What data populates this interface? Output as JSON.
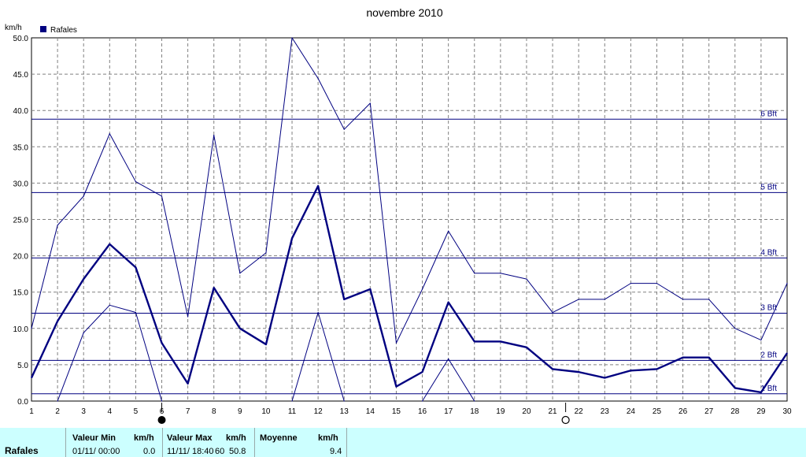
{
  "chart_data": {
    "type": "line",
    "title": "novembre 2010",
    "ylabel": "km/h",
    "ylim": [
      0,
      50
    ],
    "yticks": [
      "0.0",
      "5.0",
      "10.0",
      "15.0",
      "20.0",
      "25.0",
      "30.0",
      "35.0",
      "40.0",
      "45.0",
      "50.0"
    ],
    "x": [
      1,
      2,
      3,
      4,
      5,
      6,
      7,
      8,
      9,
      10,
      11,
      12,
      13,
      14,
      15,
      16,
      17,
      18,
      19,
      20,
      21,
      22,
      23,
      24,
      25,
      26,
      27,
      28,
      29,
      30
    ],
    "grid": true,
    "legend": {
      "position": "top-left",
      "label": "Rafales",
      "color": "#000080"
    },
    "series": [
      {
        "name": "Rafales",
        "role": "mean",
        "color": "#000080",
        "values": [
          3.2,
          11.0,
          16.8,
          21.6,
          18.4,
          8.0,
          2.4,
          15.6,
          10.0,
          7.8,
          22.4,
          29.6,
          14.0,
          15.4,
          2.0,
          4.0,
          13.6,
          8.2,
          8.2,
          7.4,
          4.4,
          4.0,
          3.2,
          4.2,
          4.4,
          6.0,
          6.0,
          1.8,
          1.2,
          6.6
        ]
      },
      {
        "role": "max",
        "color": "#000080",
        "values": [
          10.0,
          24.2,
          28.2,
          36.8,
          30.2,
          28.2,
          11.6,
          36.6,
          17.6,
          20.4,
          50.8,
          44.4,
          37.4,
          41.0,
          8.0,
          15.4,
          23.4,
          17.6,
          17.6,
          16.8,
          12.2,
          14.0,
          14.0,
          16.2,
          16.2,
          14.0,
          14.0,
          10.0,
          8.4,
          16.2
        ]
      },
      {
        "role": "min",
        "color": "#000080",
        "values": [
          null,
          0.0,
          9.4,
          13.2,
          12.2,
          0.0,
          null,
          null,
          null,
          null,
          0.0,
          12.2,
          0.0,
          null,
          null,
          0.0,
          5.8,
          0.0,
          null,
          null,
          null,
          null,
          null,
          null,
          null,
          null,
          null,
          null,
          null,
          null
        ]
      }
    ],
    "reference_lines": [
      {
        "label": "1 Bft",
        "value": 1.0
      },
      {
        "label": "2 Bft",
        "value": 5.6
      },
      {
        "label": "3 Bft",
        "value": 12.1
      },
      {
        "label": "4 Bft",
        "value": 19.7
      },
      {
        "label": "5 Bft",
        "value": 28.7
      },
      {
        "label": "6 Bft",
        "value": 38.8
      }
    ],
    "moon_phases": [
      {
        "day": 6,
        "phase": "new-moon"
      },
      {
        "day": 21.5,
        "phase": "full-moon"
      }
    ]
  },
  "footer": {
    "row_label": "Rafales",
    "min_header": "Valeur Min",
    "min_unit": "km/h",
    "min_date": "01/11/  00:00",
    "min_value": "0.0",
    "max_header": "Valeur Max",
    "max_unit": "km/h",
    "max_date": "11/11/  18:40",
    "max_extra": "60",
    "max_value": "50.8",
    "avg_header": "Moyenne",
    "avg_unit": "km/h",
    "avg_value": "9.4"
  }
}
